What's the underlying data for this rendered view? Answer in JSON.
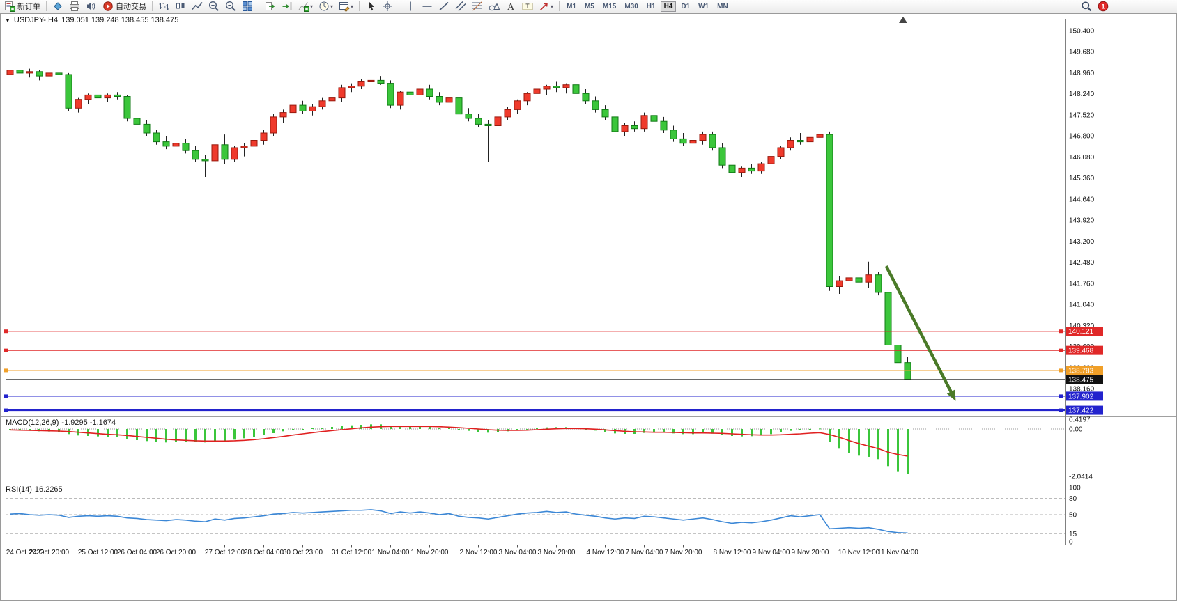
{
  "toolbar": {
    "new_order_label": "新订单",
    "autotrading_label": "自动交易",
    "timeframes": [
      "M1",
      "M5",
      "M15",
      "M30",
      "H1",
      "H4",
      "D1",
      "W1",
      "MN"
    ],
    "active_timeframe": "H4",
    "notification_badge": "1",
    "items": [
      {
        "name": "new-order-button",
        "icon": "new-order",
        "label_key": "new_order_label"
      },
      {
        "type": "sep"
      },
      {
        "name": "market-watch-button",
        "icon": "market-watch"
      },
      {
        "name": "data-window-button",
        "icon": "print"
      },
      {
        "name": "alerts-button",
        "icon": "alerts"
      },
      {
        "name": "autotrading-button",
        "icon": "autotrading",
        "label_key": "autotrading_label"
      },
      {
        "type": "sep"
      },
      {
        "name": "bar-chart-button",
        "icon": "bars-chart"
      },
      {
        "name": "candlestick-chart-button",
        "icon": "candles-chart"
      },
      {
        "name": "line-chart-button",
        "icon": "line-chart"
      },
      {
        "name": "zoom-in-button",
        "icon": "zoom-in"
      },
      {
        "name": "zoom-out-button",
        "icon": "zoom-out"
      },
      {
        "name": "tile-windows-button",
        "icon": "tile-windows"
      },
      {
        "type": "sep"
      },
      {
        "name": "auto-scroll-button",
        "icon": "auto-scroll"
      },
      {
        "name": "chart-shift-button",
        "icon": "chart-shift"
      },
      {
        "name": "indicators-button",
        "icon": "indicators-add",
        "dropdown": true
      },
      {
        "name": "periods-button",
        "icon": "clock",
        "dropdown": true
      },
      {
        "name": "templates-button",
        "icon": "templates",
        "dropdown": true
      },
      {
        "type": "sep"
      },
      {
        "name": "cursor-button",
        "icon": "cursor"
      },
      {
        "name": "crosshair-button",
        "icon": "crosshair"
      },
      {
        "type": "sep"
      },
      {
        "name": "vertical-line-button",
        "icon": "vline"
      },
      {
        "name": "horizontal-line-button",
        "icon": "hline"
      },
      {
        "name": "trendline-button",
        "icon": "trendline"
      },
      {
        "name": "equidistant-channel-button",
        "icon": "channel"
      },
      {
        "name": "fibonacci-button",
        "icon": "fibo"
      },
      {
        "name": "shapes-button",
        "icon": "shapes"
      },
      {
        "name": "text-button",
        "icon": "text-a"
      },
      {
        "name": "text-label-button",
        "icon": "text-label"
      },
      {
        "name": "arrows-button",
        "icon": "arrow-obj",
        "dropdown": true
      },
      {
        "type": "sep"
      },
      {
        "type": "timeframes"
      },
      {
        "type": "spacer"
      },
      {
        "name": "search-button",
        "icon": "magnifier"
      },
      {
        "name": "notifications-button",
        "icon": "badge",
        "badge_key": "notification_badge"
      }
    ]
  },
  "chart_data": {
    "type": "candlestick",
    "symbol": "USDJPY-",
    "period": "H4",
    "header": {
      "symbol_period": "USDJPY-,H4",
      "ohlc_text": "139.051 139.248 138.455 138.475",
      "open": 139.051,
      "high": 139.248,
      "low": 138.455,
      "close": 138.475
    },
    "price_axis": {
      "top": 150.4,
      "step": 0.72,
      "labels": [
        "150.400",
        "149.680",
        "148.960",
        "148.240",
        "147.520",
        "146.800",
        "146.080",
        "145.360",
        "144.640",
        "143.920",
        "143.200",
        "142.480",
        "141.760",
        "141.040",
        "140.320",
        "139.600",
        "138.880",
        "138.160",
        "137.440"
      ]
    },
    "time_labels": [
      "24 Oct 2022",
      "24 Oct 20:00",
      "25 Oct 12:00",
      "26 Oct 04:00",
      "26 Oct 20:00",
      "27 Oct 12:00",
      "28 Oct 04:00",
      "30 Oct 23:00",
      "31 Oct 12:00",
      "1 Nov 04:00",
      "1 Nov 20:00",
      "2 Nov 12:00",
      "3 Nov 04:00",
      "3 Nov 20:00",
      "4 Nov 12:00",
      "7 Nov 04:00",
      "7 Nov 20:00",
      "8 Nov 12:00",
      "9 Nov 04:00",
      "9 Nov 20:00",
      "10 Nov 12:00",
      "11 Nov 04:00"
    ],
    "candles": [
      [
        148.9,
        149.15,
        148.75,
        149.05
      ],
      [
        149.05,
        149.2,
        148.85,
        148.95
      ],
      [
        148.95,
        149.1,
        148.8,
        149.0
      ],
      [
        149.0,
        149.05,
        148.7,
        148.85
      ],
      [
        148.85,
        149.0,
        148.7,
        148.95
      ],
      [
        148.95,
        149.05,
        148.75,
        148.9
      ],
      [
        148.9,
        148.95,
        147.65,
        147.75
      ],
      [
        147.75,
        148.1,
        147.6,
        148.05
      ],
      [
        148.05,
        148.25,
        147.9,
        148.2
      ],
      [
        148.2,
        148.3,
        148.0,
        148.1
      ],
      [
        148.1,
        148.25,
        147.95,
        148.2
      ],
      [
        148.2,
        148.3,
        148.05,
        148.15
      ],
      [
        148.15,
        148.2,
        147.3,
        147.4
      ],
      [
        147.4,
        147.6,
        147.1,
        147.2
      ],
      [
        147.2,
        147.35,
        146.8,
        146.9
      ],
      [
        146.9,
        147.0,
        146.5,
        146.6
      ],
      [
        146.6,
        146.8,
        146.35,
        146.45
      ],
      [
        146.45,
        146.65,
        146.25,
        146.55
      ],
      [
        146.55,
        146.7,
        146.2,
        146.3
      ],
      [
        146.3,
        146.45,
        145.9,
        146.0
      ],
      [
        146.0,
        146.15,
        145.4,
        145.95
      ],
      [
        145.95,
        146.6,
        145.8,
        146.5
      ],
      [
        146.5,
        146.85,
        145.85,
        146.0
      ],
      [
        146.0,
        146.45,
        145.9,
        146.4
      ],
      [
        146.4,
        146.55,
        146.1,
        146.45
      ],
      [
        146.45,
        146.7,
        146.3,
        146.65
      ],
      [
        146.65,
        147.0,
        146.5,
        146.9
      ],
      [
        146.9,
        147.55,
        146.8,
        147.45
      ],
      [
        147.45,
        147.7,
        147.25,
        147.6
      ],
      [
        147.6,
        147.9,
        147.4,
        147.85
      ],
      [
        147.85,
        148.0,
        147.55,
        147.65
      ],
      [
        147.65,
        147.9,
        147.5,
        147.8
      ],
      [
        147.8,
        148.1,
        147.7,
        148.0
      ],
      [
        148.0,
        148.2,
        147.85,
        148.1
      ],
      [
        148.1,
        148.55,
        147.95,
        148.45
      ],
      [
        148.45,
        148.6,
        148.3,
        148.5
      ],
      [
        148.5,
        148.75,
        148.4,
        148.65
      ],
      [
        148.65,
        148.8,
        148.5,
        148.7
      ],
      [
        148.7,
        148.85,
        148.55,
        148.6
      ],
      [
        148.6,
        148.7,
        147.75,
        147.85
      ],
      [
        147.85,
        148.35,
        147.7,
        148.3
      ],
      [
        148.3,
        148.5,
        148.1,
        148.2
      ],
      [
        148.2,
        148.45,
        147.95,
        148.4
      ],
      [
        148.4,
        148.55,
        148.05,
        148.15
      ],
      [
        148.15,
        148.3,
        147.85,
        147.95
      ],
      [
        147.95,
        148.2,
        147.8,
        148.1
      ],
      [
        148.1,
        148.25,
        147.45,
        147.55
      ],
      [
        147.55,
        147.75,
        147.3,
        147.4
      ],
      [
        147.4,
        147.55,
        147.1,
        147.2
      ],
      [
        147.2,
        147.35,
        145.9,
        147.15
      ],
      [
        147.15,
        147.5,
        147.0,
        147.45
      ],
      [
        147.45,
        147.8,
        147.35,
        147.7
      ],
      [
        147.7,
        148.05,
        147.55,
        148.0
      ],
      [
        148.0,
        148.3,
        147.85,
        148.25
      ],
      [
        148.25,
        148.45,
        148.05,
        148.4
      ],
      [
        148.4,
        148.55,
        148.2,
        148.5
      ],
      [
        148.5,
        148.65,
        148.3,
        148.45
      ],
      [
        148.45,
        148.6,
        148.25,
        148.55
      ],
      [
        148.55,
        148.65,
        148.15,
        148.25
      ],
      [
        148.25,
        148.4,
        147.9,
        148.0
      ],
      [
        148.0,
        148.15,
        147.6,
        147.7
      ],
      [
        147.7,
        147.85,
        147.35,
        147.45
      ],
      [
        147.45,
        147.6,
        146.85,
        146.95
      ],
      [
        146.95,
        147.25,
        146.8,
        147.15
      ],
      [
        147.15,
        147.3,
        146.95,
        147.05
      ],
      [
        147.05,
        147.6,
        146.95,
        147.5
      ],
      [
        147.5,
        147.75,
        147.2,
        147.3
      ],
      [
        147.3,
        147.45,
        146.9,
        147.0
      ],
      [
        147.0,
        147.15,
        146.6,
        146.7
      ],
      [
        146.7,
        146.9,
        146.45,
        146.55
      ],
      [
        146.55,
        146.75,
        146.4,
        146.65
      ],
      [
        146.65,
        146.95,
        146.5,
        146.85
      ],
      [
        146.85,
        146.95,
        146.3,
        146.4
      ],
      [
        146.4,
        146.55,
        145.7,
        145.8
      ],
      [
        145.8,
        145.95,
        145.45,
        145.55
      ],
      [
        145.55,
        145.75,
        145.4,
        145.7
      ],
      [
        145.7,
        145.85,
        145.5,
        145.6
      ],
      [
        145.6,
        145.9,
        145.5,
        145.85
      ],
      [
        145.85,
        146.2,
        145.7,
        146.1
      ],
      [
        146.1,
        146.45,
        146.0,
        146.4
      ],
      [
        146.4,
        146.75,
        146.3,
        146.65
      ],
      [
        146.65,
        146.9,
        146.5,
        146.6
      ],
      [
        146.6,
        146.8,
        146.45,
        146.75
      ],
      [
        146.75,
        146.9,
        146.55,
        146.85
      ],
      [
        146.85,
        146.95,
        141.5,
        141.65
      ],
      [
        141.65,
        142.0,
        141.4,
        141.85
      ],
      [
        141.85,
        142.1,
        140.2,
        141.95
      ],
      [
        141.95,
        142.2,
        141.7,
        141.8
      ],
      [
        141.8,
        142.5,
        141.6,
        142.05
      ],
      [
        142.05,
        142.15,
        141.35,
        141.45
      ],
      [
        141.45,
        141.55,
        139.55,
        139.65
      ],
      [
        139.65,
        139.75,
        138.95,
        139.05
      ],
      [
        139.051,
        139.248,
        138.455,
        138.475
      ]
    ],
    "hlines": [
      {
        "price": 140.121,
        "label": "140.121",
        "color": "#e02828"
      },
      {
        "price": 139.468,
        "label": "139.468",
        "color": "#e02828"
      },
      {
        "price": 138.783,
        "label": "138.783",
        "color": "#f09f28"
      },
      {
        "price": 137.902,
        "label": "137.902",
        "color": "#2323cd"
      },
      {
        "price": 137.422,
        "label": "137.422",
        "color": "#2323cd",
        "width": 2.2
      }
    ],
    "current_price": 138.475,
    "current_price_label": "138.475",
    "trend_arrow": {
      "from_bar": 89.8,
      "from_price": 142.35,
      "to_bar": 96.6,
      "to_price": 137.95,
      "color": "#4a7a28"
    },
    "macd": {
      "label": "MACD(12,26,9)",
      "values_text": "-1.9295 -1.1674",
      "macd_value": -1.9295,
      "signal_value": -1.1674,
      "axis": [
        {
          "value": 0.4197,
          "label": "0.4197"
        },
        {
          "value": 0,
          "label": "0.00"
        },
        {
          "value": -2.0414,
          "label": "-2.0414"
        }
      ],
      "histogram": [
        -0.05,
        -0.07,
        -0.08,
        -0.1,
        -0.11,
        -0.12,
        -0.22,
        -0.28,
        -0.3,
        -0.32,
        -0.33,
        -0.34,
        -0.42,
        -0.48,
        -0.52,
        -0.56,
        -0.58,
        -0.57,
        -0.55,
        -0.56,
        -0.58,
        -0.52,
        -0.5,
        -0.46,
        -0.4,
        -0.34,
        -0.27,
        -0.18,
        -0.1,
        -0.03,
        0.0,
        0.03,
        0.06,
        0.09,
        0.13,
        0.16,
        0.18,
        0.2,
        0.2,
        0.14,
        0.12,
        0.11,
        0.11,
        0.09,
        0.05,
        0.03,
        -0.03,
        -0.08,
        -0.12,
        -0.16,
        -0.14,
        -0.1,
        -0.05,
        0.0,
        0.04,
        0.07,
        0.08,
        0.08,
        0.04,
        -0.01,
        -0.07,
        -0.13,
        -0.19,
        -0.21,
        -0.21,
        -0.17,
        -0.15,
        -0.16,
        -0.19,
        -0.22,
        -0.22,
        -0.19,
        -0.2,
        -0.25,
        -0.3,
        -0.32,
        -0.31,
        -0.28,
        -0.22,
        -0.15,
        -0.08,
        -0.04,
        -0.01,
        0.02,
        -0.55,
        -0.85,
        -1.05,
        -1.15,
        -1.2,
        -1.3,
        -1.6,
        -1.85,
        -1.93
      ],
      "signal": [
        -0.04,
        -0.05,
        -0.06,
        -0.07,
        -0.08,
        -0.09,
        -0.11,
        -0.14,
        -0.17,
        -0.2,
        -0.23,
        -0.25,
        -0.28,
        -0.32,
        -0.36,
        -0.4,
        -0.44,
        -0.47,
        -0.49,
        -0.51,
        -0.52,
        -0.52,
        -0.52,
        -0.51,
        -0.49,
        -0.46,
        -0.42,
        -0.37,
        -0.32,
        -0.26,
        -0.21,
        -0.16,
        -0.11,
        -0.07,
        -0.03,
        0.01,
        0.05,
        0.08,
        0.1,
        0.11,
        0.11,
        0.11,
        0.11,
        0.11,
        0.1,
        0.08,
        0.06,
        0.03,
        0.0,
        -0.03,
        -0.05,
        -0.06,
        -0.06,
        -0.05,
        -0.03,
        -0.01,
        0.01,
        0.02,
        0.02,
        0.01,
        -0.01,
        -0.04,
        -0.07,
        -0.1,
        -0.12,
        -0.13,
        -0.14,
        -0.14,
        -0.15,
        -0.16,
        -0.17,
        -0.17,
        -0.18,
        -0.19,
        -0.21,
        -0.23,
        -0.25,
        -0.26,
        -0.26,
        -0.25,
        -0.23,
        -0.21,
        -0.18,
        -0.16,
        -0.24,
        -0.36,
        -0.5,
        -0.63,
        -0.74,
        -0.85,
        -1.0,
        -1.1,
        -1.17
      ]
    },
    "rsi": {
      "label": "RSI(14)",
      "value_text": "16.2265",
      "value": 16.2265,
      "levels": [
        80,
        50,
        15
      ],
      "axis": [
        {
          "value": 100,
          "label": "100"
        },
        {
          "value": 80,
          "label": "80"
        },
        {
          "value": 50,
          "label": "50"
        },
        {
          "value": 15,
          "label": "15"
        },
        {
          "value": 0,
          "label": "0"
        }
      ],
      "values": [
        51,
        52,
        50,
        49,
        50,
        49,
        45,
        47,
        48,
        47,
        48,
        47,
        44,
        43,
        41,
        40,
        39,
        41,
        40,
        38,
        37,
        42,
        40,
        43,
        44,
        46,
        48,
        51,
        52,
        54,
        53,
        54,
        55,
        56,
        57,
        58,
        58,
        59,
        57,
        52,
        55,
        53,
        55,
        53,
        50,
        52,
        47,
        45,
        44,
        42,
        45,
        48,
        51,
        53,
        54,
        56,
        54,
        55,
        51,
        49,
        47,
        44,
        42,
        44,
        43,
        47,
        46,
        44,
        42,
        40,
        42,
        44,
        41,
        37,
        34,
        36,
        35,
        37,
        40,
        44,
        48,
        46,
        48,
        50,
        24,
        25,
        26,
        25,
        26,
        23,
        19,
        17,
        16.23
      ]
    },
    "colors": {
      "up": "#ef3a2c",
      "down": "#3bc63b",
      "up_border": "#9a1a0e",
      "down_border": "#117a16",
      "wick": "#222222",
      "macd_hist": "#3bc63b",
      "macd_signal": "#e02020",
      "rsi": "#3b87d6",
      "grid": "#b0b0b0"
    }
  }
}
